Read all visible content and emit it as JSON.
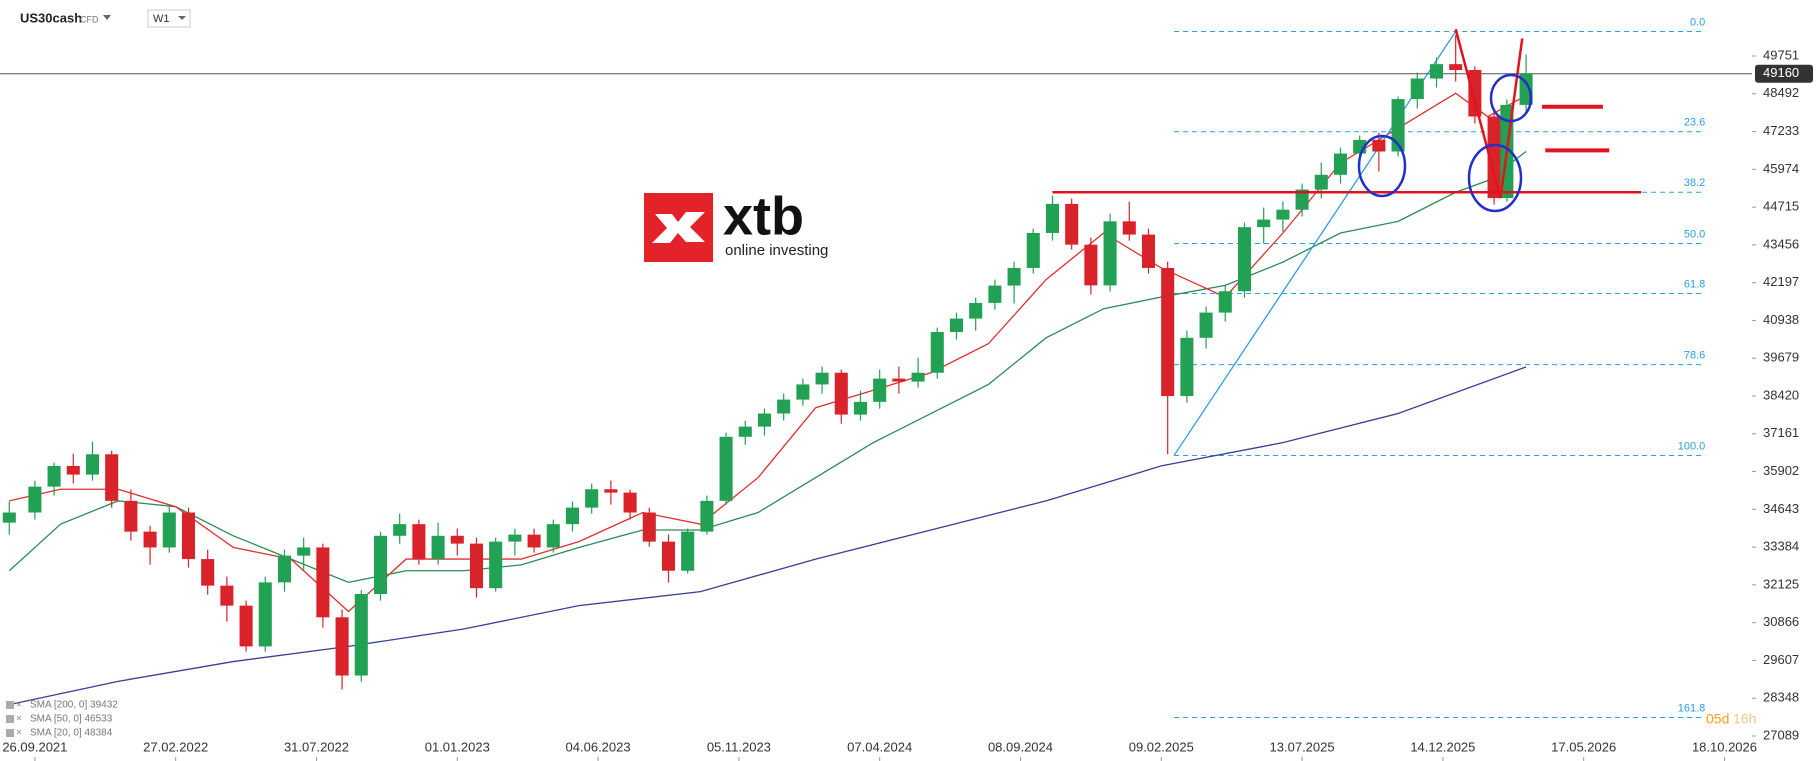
{
  "header": {
    "symbol": "US30cash",
    "instrument": "CFD",
    "timeframe": "W1"
  },
  "logo": {
    "name": "xtb",
    "tagline": "online investing"
  },
  "countdown": {
    "days": "05d",
    "hours": "16h"
  },
  "chart_data": {
    "type": "candlestick",
    "up_color": "#22a053",
    "down_color": "#d8232a",
    "x": [
      -4,
      0,
      3,
      6,
      9,
      12,
      15,
      18,
      21,
      24,
      27,
      30,
      33,
      36,
      39,
      42,
      45,
      48,
      51,
      54,
      57,
      60,
      63,
      66,
      69,
      72,
      75,
      78,
      81,
      84,
      87,
      90,
      93,
      96,
      99,
      102,
      105,
      108,
      111,
      114,
      117,
      120,
      123,
      126,
      129,
      132,
      135,
      138,
      141,
      144,
      147,
      150,
      153,
      156,
      159,
      162,
      165,
      168,
      171,
      174,
      177,
      180,
      183,
      186,
      189,
      192,
      195,
      198,
      201,
      204,
      207,
      210,
      213,
      216,
      219,
      222,
      225,
      228,
      230,
      233
    ],
    "open": [
      34200,
      34537,
      35400,
      36090,
      35800,
      36478,
      34926,
      33900,
      33373,
      34537,
      32985,
      32100,
      31433,
      30075,
      32209,
      33100,
      33373,
      31045,
      29104,
      31821,
      33761,
      34149,
      32985,
      33761,
      33500,
      32015,
      33567,
      33800,
      33373,
      34149,
      34700,
      35313,
      35200,
      34537,
      33567,
      32597,
      33900,
      34926,
      37060,
      37400,
      37836,
      38300,
      38806,
      39195,
      37800,
      38224,
      39000,
      38900,
      39195,
      40553,
      41000,
      41523,
      42100,
      42688,
      43852,
      44822,
      43464,
      42106,
      44240,
      43800,
      42688,
      38418,
      40359,
      41200,
      41911,
      44046,
      44300,
      44628,
      45300,
      45792,
      46500,
      46957,
      46568,
      48315,
      49000,
      49479,
      49285,
      47733,
      45016,
      48121
    ],
    "high": [
      34900,
      35600,
      36200,
      36500,
      36900,
      36600,
      35300,
      34100,
      34800,
      34700,
      33300,
      32400,
      31600,
      32400,
      33300,
      33700,
      33500,
      31300,
      31950,
      33900,
      34500,
      34300,
      34200,
      34000,
      33700,
      33700,
      34000,
      34000,
      34300,
      34900,
      35500,
      35600,
      35300,
      34700,
      33800,
      34000,
      35100,
      37200,
      37600,
      38000,
      38500,
      39000,
      39400,
      39300,
      38600,
      39300,
      39400,
      39700,
      40700,
      41200,
      41700,
      42300,
      42900,
      44000,
      45100,
      45000,
      43700,
      44500,
      44900,
      44000,
      42900,
      40600,
      41400,
      42100,
      44200,
      44700,
      44900,
      45500,
      46200,
      46700,
      47100,
      47200,
      48400,
      49200,
      49700,
      50450,
      49400,
      47900,
      48300,
      49800
    ],
    "low": [
      33800,
      34300,
      35100,
      35500,
      35600,
      34700,
      33600,
      32800,
      33200,
      32700,
      31800,
      30900,
      29900,
      29900,
      31900,
      32600,
      30700,
      28640,
      28900,
      31600,
      33500,
      32800,
      32800,
      33100,
      31700,
      31900,
      33100,
      33200,
      33200,
      33900,
      34500,
      34800,
      34300,
      33400,
      32200,
      32500,
      33800,
      34800,
      36800,
      37100,
      37600,
      38100,
      38500,
      37500,
      37600,
      38000,
      38500,
      38700,
      39000,
      40300,
      40600,
      41300,
      41500,
      42500,
      43600,
      43300,
      41800,
      41900,
      43600,
      42500,
      36478,
      38200,
      40000,
      40900,
      41700,
      43500,
      43900,
      44400,
      45000,
      45500,
      46100,
      45900,
      46400,
      48000,
      48700,
      48900,
      47500,
      44800,
      44900,
      47900
    ],
    "close": [
      34537,
      35400,
      36090,
      35800,
      36478,
      34926,
      33900,
      33373,
      34537,
      32985,
      32100,
      31433,
      30075,
      32209,
      33100,
      33373,
      31045,
      29104,
      31821,
      33761,
      34149,
      32985,
      33761,
      33500,
      32015,
      33567,
      33800,
      33373,
      34149,
      34700,
      35313,
      35200,
      34537,
      33567,
      32597,
      33900,
      34926,
      37060,
      37400,
      37836,
      38300,
      38806,
      39195,
      37800,
      38224,
      39000,
      38900,
      39195,
      40553,
      41000,
      41523,
      42100,
      42688,
      43852,
      44822,
      43464,
      42106,
      44240,
      43800,
      42688,
      38418,
      40359,
      41200,
      41911,
      44046,
      44300,
      44628,
      45300,
      45792,
      46500,
      46957,
      46568,
      48315,
      49000,
      49479,
      49285,
      47733,
      45016,
      48121,
      49160
    ],
    "series": [
      {
        "name": "SMA [200, 0] 39432",
        "color": "#3b3f94",
        "x": [
          -4,
          13,
          31,
          49,
          67,
          85,
          104,
          122,
          140,
          158,
          176,
          195,
          213,
          233
        ],
        "values": [
          28134,
          28910,
          29570,
          30075,
          30656,
          31433,
          31899,
          32985,
          33955,
          34926,
          36090,
          36866,
          37836,
          39388
        ]
      },
      {
        "name": "SMA [50, 0] 46533",
        "color": "#2e8b57",
        "x": [
          -4,
          4,
          13,
          22,
          31,
          40,
          49,
          58,
          67,
          76,
          85,
          95,
          104,
          113,
          122,
          131,
          140,
          149,
          158,
          167,
          176,
          186,
          195,
          204,
          213,
          222,
          227,
          233
        ],
        "values": [
          32597,
          34149,
          34926,
          34731,
          33761,
          32985,
          32209,
          32597,
          32597,
          32791,
          33373,
          33955,
          33955,
          34537,
          35701,
          36866,
          37836,
          38806,
          40359,
          41329,
          41717,
          42106,
          42882,
          43852,
          44240,
          45210,
          45598,
          46568
        ]
      },
      {
        "name": "SMA [20, 0] 48384",
        "color": "#e0302e",
        "x": [
          -4,
          4,
          13,
          22,
          31,
          40,
          49,
          58,
          67,
          76,
          85,
          95,
          104,
          113,
          122,
          131,
          140,
          149,
          158,
          167,
          176,
          186,
          195,
          204,
          213,
          222,
          227,
          232
        ],
        "values": [
          34926,
          35313,
          35313,
          34731,
          33373,
          32985,
          31239,
          32985,
          32985,
          32985,
          33567,
          34537,
          34149,
          35701,
          38030,
          38612,
          39195,
          40165,
          42300,
          43852,
          42688,
          41717,
          43852,
          46181,
          47345,
          48509,
          47733,
          48315
        ]
      }
    ],
    "current_price": 49160,
    "fibonacci": {
      "color": "#2a9fe0",
      "x": [
        178,
        261
      ],
      "levels": [
        {
          "label": "0.0",
          "value": 50566
        },
        {
          "label": "23.6",
          "value": 47228
        },
        {
          "label": "38.2",
          "value": 45210
        },
        {
          "label": "50.0",
          "value": 43503
        },
        {
          "label": "61.8",
          "value": 41834
        },
        {
          "label": "78.6",
          "value": 39467
        },
        {
          "label": "100.0",
          "value": 36439
        },
        {
          "label": "161.8",
          "value": 27707
        }
      ]
    },
    "trendline": {
      "color": "#2a9fe0",
      "x": [
        178,
        222
      ],
      "values": [
        36439,
        50566
      ]
    },
    "levels": [
      {
        "value": 45210,
        "x": [
          159,
          251
        ]
      },
      {
        "value": 48058,
        "x": [
          235.5,
          245
        ]
      },
      {
        "value": 46607,
        "x": [
          236,
          246
        ]
      }
    ],
    "level_color": "#e0141c",
    "sketch": {
      "x": [
        222,
        229,
        232.4
      ],
      "values": [
        50644,
        45016,
        50334
      ]
    },
    "xlim": [
      -5.45,
      268.3
    ],
    "ylim": [
      26256,
      51617
    ],
    "xticks": [
      {
        "value": 0,
        "label": "26.09.2021"
      },
      {
        "value": 22,
        "label": "27.02.2022"
      },
      {
        "value": 44,
        "label": "31.07.2022"
      },
      {
        "value": 66,
        "label": "01.01.2023"
      },
      {
        "value": 88,
        "label": "04.06.2023"
      },
      {
        "value": 110,
        "label": "05.11.2023"
      },
      {
        "value": 132,
        "label": "07.04.2024"
      },
      {
        "value": 154,
        "label": "08.09.2024"
      },
      {
        "value": 176,
        "label": "09.02.2025"
      },
      {
        "value": 198,
        "label": "13.07.2025"
      },
      {
        "value": 220,
        "label": "14.12.2025"
      },
      {
        "value": 242,
        "label": "17.05.2026"
      },
      {
        "value": 264,
        "label": "18.10.2026"
      }
    ],
    "yticks": [
      49751,
      48492,
      47233,
      45974,
      44715,
      43456,
      42197,
      40938,
      39679,
      38420,
      37161,
      35902,
      34643,
      33384,
      32125,
      30866,
      29607,
      28348,
      27089
    ]
  }
}
